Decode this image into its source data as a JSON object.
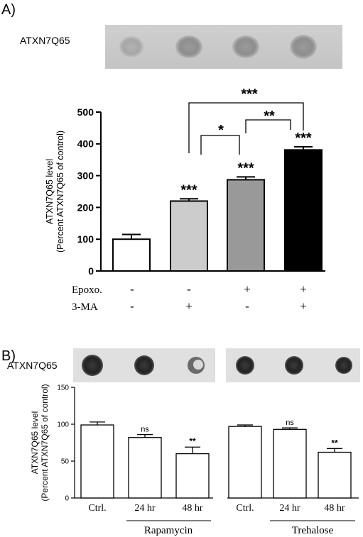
{
  "panel_a": {
    "label": "A)",
    "blot_label": "ATXN7Q65",
    "ylabel_line1": "ATXN7Q65 level",
    "ylabel_line2": "(Percent ATXN7Q65 of control)",
    "treatment_rows": [
      {
        "name": "Epoxo.",
        "signs": [
          "-",
          "-",
          "+",
          "+"
        ]
      },
      {
        "name": "3-MA",
        "signs": [
          "-",
          "+",
          "-",
          "+"
        ]
      }
    ],
    "comparison_marks": [
      "***",
      "*",
      "**"
    ]
  },
  "panel_b": {
    "label": "B)",
    "blot_label": "ATXN7Q65",
    "ylabel_line1": "ATXN7Q65 level",
    "ylabel_line2": "(Percent ATXN7Q65 of control)",
    "group_left": "Rapamycin",
    "group_right": "Trehalose"
  },
  "chart_data": [
    {
      "type": "bar",
      "categories": [
        "",
        "",
        "",
        ""
      ],
      "values": [
        100,
        220,
        287,
        381
      ],
      "errors": [
        15,
        7,
        9,
        10
      ],
      "sig_labels": [
        "",
        "***",
        "***",
        "***"
      ],
      "bar_colors": [
        "#ffffff",
        "#cccccc",
        "#999999",
        "#000000"
      ],
      "yticks": [
        0,
        100,
        200,
        300,
        400,
        500
      ],
      "ylim": [
        0,
        500
      ],
      "ylabel": "ATXN7Q65 level (Percent ATXN7Q65 of control)"
    },
    {
      "type": "bar",
      "categories": [
        "Ctrl.",
        "24 hr",
        "48 hr"
      ],
      "values": [
        99,
        82,
        60
      ],
      "errors": [
        4,
        4,
        9
      ],
      "sig_labels": [
        "",
        "ns",
        "**"
      ],
      "group": "Rapamycin",
      "yticks": [
        0,
        50,
        100,
        150
      ],
      "ylim": [
        0,
        150
      ],
      "ylabel": "ATXN7Q65 level (Percent ATXN7Q65 of control)"
    },
    {
      "type": "bar",
      "categories": [
        "Ctrl.",
        "24 hr",
        "48 hr"
      ],
      "values": [
        97,
        93,
        62
      ],
      "errors": [
        2,
        2,
        5
      ],
      "sig_labels": [
        "",
        "ns",
        "**"
      ],
      "group": "Trehalose",
      "ylim": [
        0,
        150
      ]
    }
  ]
}
